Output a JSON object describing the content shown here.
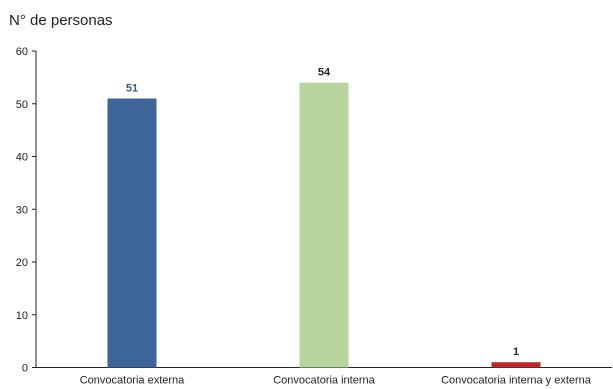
{
  "chart_data": {
    "type": "bar",
    "title": "",
    "xlabel": "",
    "ylabel": "N° de personas",
    "categories": [
      "Convocatoria externa",
      "Convocatoria interna",
      "Convocatoria interna y externa"
    ],
    "values": [
      51,
      54,
      1
    ],
    "data_labels": [
      "51",
      "54",
      "1"
    ],
    "bar_colors": [
      "#3d6598",
      "#b7d49c",
      "#c0272d"
    ],
    "label_colors": [
      "#3d5a78",
      "#222222",
      "#222222"
    ],
    "ylim": [
      0,
      60
    ],
    "yticks": [
      0,
      10,
      20,
      30,
      40,
      50,
      60
    ],
    "ytick_labels": [
      "0",
      "10",
      "20",
      "30",
      "40",
      "50",
      "60"
    ],
    "grid": false,
    "legend": "none"
  }
}
